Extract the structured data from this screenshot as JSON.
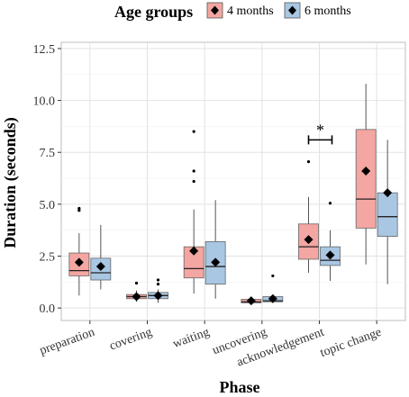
{
  "chart_data": {
    "type": "boxplot",
    "title": "",
    "xlabel": "Phase",
    "ylabel": "Duration (seconds)",
    "ylim": [
      -0.6,
      12.8
    ],
    "yticks": [
      "0.0",
      "2.5",
      "5.0",
      "7.5",
      "10.0",
      "12.5"
    ],
    "ytick_values": [
      0,
      2.5,
      5,
      7.5,
      10,
      12.5
    ],
    "grid": true,
    "legend": {
      "title": "Age groups",
      "position": "top",
      "items": [
        {
          "name": "4 months",
          "fill": "#f4a6a2"
        },
        {
          "name": "6 months",
          "fill": "#a9c7e3"
        }
      ]
    },
    "categories": [
      "preparation",
      "covering",
      "waiting",
      "uncovering",
      "acknowledgement",
      "topic change"
    ],
    "series": [
      {
        "name": "4 months",
        "color": "#f4a6a2",
        "boxes": [
          {
            "whisker_low": 0.6,
            "q1": 1.55,
            "median": 1.8,
            "q3": 2.65,
            "whisker_high": 3.6,
            "mean": 2.2,
            "outliers": [
              4.7,
              4.8
            ]
          },
          {
            "whisker_low": 0.3,
            "q1": 0.45,
            "median": 0.55,
            "q3": 0.65,
            "whisker_high": 0.85,
            "mean": 0.55,
            "outliers": [
              1.2
            ]
          },
          {
            "whisker_low": 0.7,
            "q1": 1.45,
            "median": 1.9,
            "q3": 2.95,
            "whisker_high": 4.75,
            "mean": 2.75,
            "outliers": [
              6.1,
              6.6,
              8.5
            ]
          },
          {
            "whisker_low": 0.2,
            "q1": 0.25,
            "median": 0.3,
            "q3": 0.42,
            "whisker_high": 0.5,
            "mean": 0.35,
            "outliers": []
          },
          {
            "whisker_low": 1.7,
            "q1": 2.35,
            "median": 2.95,
            "q3": 4.05,
            "whisker_high": 5.35,
            "mean": 3.3,
            "outliers": [
              7.05
            ]
          },
          {
            "whisker_low": 2.1,
            "q1": 3.85,
            "median": 5.25,
            "q3": 8.6,
            "whisker_high": 10.8,
            "mean": 6.6,
            "outliers": []
          }
        ]
      },
      {
        "name": "6 months",
        "color": "#a9c7e3",
        "boxes": [
          {
            "whisker_low": 0.9,
            "q1": 1.35,
            "median": 1.7,
            "q3": 2.4,
            "whisker_high": 4.0,
            "mean": 2.0,
            "outliers": []
          },
          {
            "whisker_low": 0.25,
            "q1": 0.45,
            "median": 0.6,
            "q3": 0.75,
            "whisker_high": 0.9,
            "mean": 0.6,
            "outliers": [
              1.15,
              1.35
            ]
          },
          {
            "whisker_low": 0.45,
            "q1": 1.15,
            "median": 2.0,
            "q3": 3.2,
            "whisker_high": 5.2,
            "mean": 2.2,
            "outliers": []
          },
          {
            "whisker_low": 0.25,
            "q1": 0.3,
            "median": 0.35,
            "q3": 0.55,
            "whisker_high": 0.6,
            "mean": 0.45,
            "outliers": [
              1.55
            ]
          },
          {
            "whisker_low": 1.3,
            "q1": 2.05,
            "median": 2.3,
            "q3": 2.95,
            "whisker_high": 3.75,
            "mean": 2.55,
            "outliers": [
              5.05
            ]
          },
          {
            "whisker_low": 1.15,
            "q1": 3.45,
            "median": 4.4,
            "q3": 5.55,
            "whisker_high": 8.1,
            "mean": 5.55,
            "outliers": []
          }
        ]
      }
    ],
    "annotations": [
      {
        "text": "*",
        "category": "acknowledgement",
        "y": 8.1
      }
    ]
  }
}
